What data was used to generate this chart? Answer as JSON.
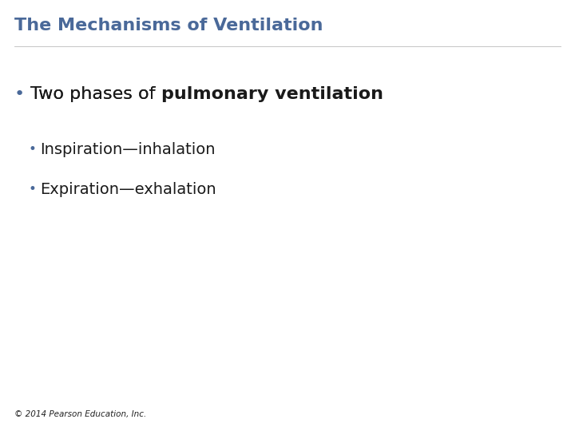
{
  "title": "The Mechanisms of Ventilation",
  "title_color": "#4a6999",
  "title_fontsize": 16,
  "background_color": "#ffffff",
  "bullet1_text_normal": "Two phases of ",
  "bullet1_text_bold": "pulmonary ventilation",
  "bullet1_fontsize": 16,
  "bullet1_color": "#1a1a1a",
  "bullet2_text": "Inspiration—inhalation",
  "bullet3_text": "Expiration—exhalation",
  "sub_bullet_fontsize": 14,
  "sub_bullet_color": "#1a1a1a",
  "footer_text": "© 2014 Pearson Education, Inc.",
  "footer_fontsize": 7.5,
  "footer_color": "#222222",
  "bullet_dot_color": "#4a6999",
  "sub_bullet_dot_color": "#4a6999"
}
